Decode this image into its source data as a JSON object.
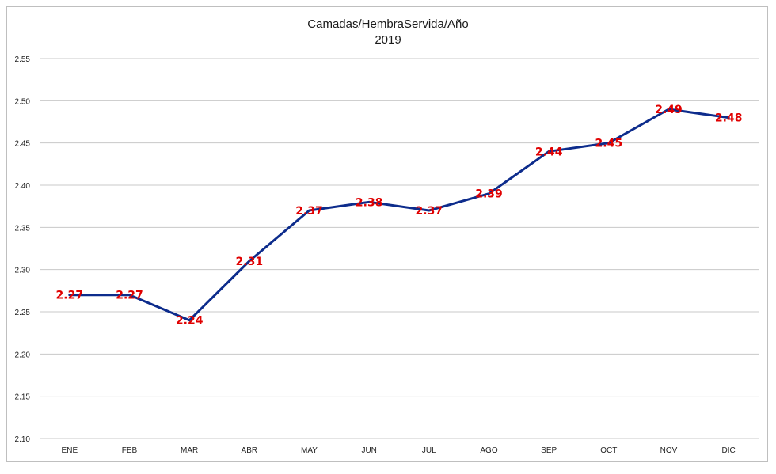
{
  "chart_data": {
    "type": "line",
    "title": "Camadas/HembraServida/Año",
    "subtitle": "2019",
    "xlabel": "",
    "ylabel": "",
    "categories": [
      "ENE",
      "FEB",
      "MAR",
      "ABR",
      "MAY",
      "JUN",
      "JUL",
      "AGO",
      "SEP",
      "OCT",
      "NOV",
      "DIC"
    ],
    "series": [
      {
        "values": [
          2.27,
          2.27,
          2.24,
          2.31,
          2.37,
          2.38,
          2.37,
          2.39,
          2.44,
          2.45,
          2.49,
          2.48
        ]
      }
    ],
    "data_labels": [
      "2.27",
      "2.27",
      "2.24",
      "2.31",
      "2.37",
      "2.38",
      "2.37",
      "2.39",
      "2.44",
      "2.45",
      "2.49",
      "2.48"
    ],
    "ylim": [
      2.1,
      2.55
    ],
    "yticks": [
      "2.10",
      "2.15",
      "2.20",
      "2.25",
      "2.30",
      "2.35",
      "2.40",
      "2.45",
      "2.50",
      "2.55"
    ],
    "grid": true,
    "legend": "none",
    "colors": {
      "line": "#0d2c8c",
      "labels": "#e00000",
      "grid": "#c8c8c8"
    }
  }
}
